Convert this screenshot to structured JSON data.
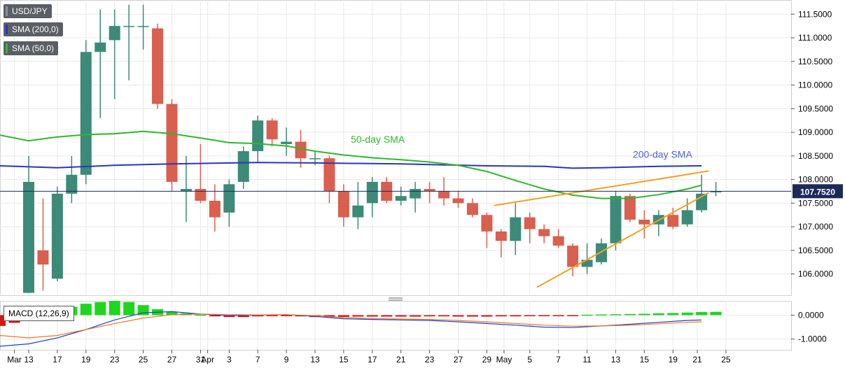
{
  "colors": {
    "bull": "#3d8a78",
    "bear": "#d95f4f",
    "sma200": "#2a36b8",
    "sma50": "#2db82d",
    "trend": "#f5a020",
    "price_line": "#1c2a5a",
    "macd_pos": "#1ed61e",
    "macd_neg": "#d41616",
    "macd_line": "#1a3fd0",
    "signal_line": "#f07820",
    "grid": "#e8e8e8",
    "axis_text": "#000000"
  },
  "legend": {
    "symbol": "USD/JPY",
    "sma200": "SMA (200,0)",
    "sma50": "SMA (50,0)",
    "macd": "MACD (12,26,9)"
  },
  "chart_data": {
    "type": "candlestick",
    "symbol": "USD/JPY",
    "ylim": [
      105.55,
      111.8
    ],
    "y_ticks": [
      "111.5000",
      "111.0000",
      "110.5000",
      "110.0000",
      "109.5000",
      "109.0000",
      "108.5000",
      "108.0000",
      "107.5000",
      "107.0000",
      "106.5000",
      "106.0000"
    ],
    "y_tick_values": [
      111.5,
      111.0,
      110.5,
      110.0,
      109.5,
      109.0,
      108.5,
      108.0,
      107.5,
      107.0,
      106.5,
      106.0
    ],
    "last_price": 107.752,
    "last_price_label": "107.7520",
    "x_tick_labels": [
      {
        "i": -1,
        "label": "Mar"
      },
      {
        "i": 0,
        "label": "13"
      },
      {
        "i": 2,
        "label": "17"
      },
      {
        "i": 4,
        "label": "19"
      },
      {
        "i": 6,
        "label": "23"
      },
      {
        "i": 8,
        "label": "25"
      },
      {
        "i": 10,
        "label": "27"
      },
      {
        "i": 12,
        "label": "31"
      },
      {
        "i": 12.5,
        "label": "Apr"
      },
      {
        "i": 14,
        "label": "3"
      },
      {
        "i": 16,
        "label": "7"
      },
      {
        "i": 18,
        "label": "9"
      },
      {
        "i": 20,
        "label": "13"
      },
      {
        "i": 22,
        "label": "15"
      },
      {
        "i": 24,
        "label": "17"
      },
      {
        "i": 26,
        "label": "21"
      },
      {
        "i": 28,
        "label": "23"
      },
      {
        "i": 30,
        "label": "27"
      },
      {
        "i": 32,
        "label": "29"
      },
      {
        "i": 33.2,
        "label": "May"
      },
      {
        "i": 35,
        "label": "5"
      },
      {
        "i": 37,
        "label": "7"
      },
      {
        "i": 39,
        "label": "11"
      },
      {
        "i": 41,
        "label": "13"
      },
      {
        "i": 43,
        "label": "15"
      },
      {
        "i": 45,
        "label": "19"
      },
      {
        "i": 46.7,
        "label": "21"
      },
      {
        "i": 48.7,
        "label": "25"
      }
    ],
    "candles": [
      {
        "date": "Mar 13",
        "o": 105.6,
        "h": 108.5,
        "l": 105.6,
        "c": 107.95
      },
      {
        "date": "Mar 16",
        "o": 106.5,
        "h": 107.6,
        "l": 105.65,
        "c": 106.2
      },
      {
        "date": "Mar 17",
        "o": 105.9,
        "h": 107.85,
        "l": 105.85,
        "c": 107.7
      },
      {
        "date": "Mar 18",
        "o": 107.7,
        "h": 108.5,
        "l": 107.5,
        "c": 108.1
      },
      {
        "date": "Mar 19",
        "o": 108.1,
        "h": 110.95,
        "l": 107.9,
        "c": 110.7
      },
      {
        "date": "Mar 20",
        "o": 110.7,
        "h": 111.6,
        "l": 109.3,
        "c": 110.9
      },
      {
        "date": "Mar 23",
        "o": 110.95,
        "h": 111.6,
        "l": 109.7,
        "c": 111.25
      },
      {
        "date": "Mar 24",
        "o": 111.25,
        "h": 111.7,
        "l": 110.1,
        "c": 111.25
      },
      {
        "date": "Mar 25",
        "o": 111.25,
        "h": 111.7,
        "l": 110.75,
        "c": 111.25
      },
      {
        "date": "Mar 26",
        "o": 111.2,
        "h": 111.3,
        "l": 109.5,
        "c": 109.6
      },
      {
        "date": "Mar 27",
        "o": 109.6,
        "h": 109.7,
        "l": 107.75,
        "c": 107.95
      },
      {
        "date": "Mar 30",
        "o": 107.75,
        "h": 108.5,
        "l": 107.1,
        "c": 107.8
      },
      {
        "date": "Mar 31",
        "o": 107.8,
        "h": 108.75,
        "l": 107.5,
        "c": 107.55
      },
      {
        "date": "Apr 1",
        "o": 107.55,
        "h": 107.9,
        "l": 106.9,
        "c": 107.2
      },
      {
        "date": "Apr 2",
        "o": 107.3,
        "h": 108.0,
        "l": 107.0,
        "c": 107.9
      },
      {
        "date": "Apr 3",
        "o": 107.95,
        "h": 108.7,
        "l": 107.8,
        "c": 108.6
      },
      {
        "date": "Apr 6",
        "o": 108.6,
        "h": 109.35,
        "l": 108.35,
        "c": 109.25
      },
      {
        "date": "Apr 7",
        "o": 109.25,
        "h": 109.3,
        "l": 108.7,
        "c": 108.85
      },
      {
        "date": "Apr 8",
        "o": 108.75,
        "h": 109.1,
        "l": 108.5,
        "c": 108.8
      },
      {
        "date": "Apr 9",
        "o": 108.8,
        "h": 109.05,
        "l": 108.25,
        "c": 108.45
      },
      {
        "date": "Apr 10",
        "o": 108.45,
        "h": 108.6,
        "l": 108.3,
        "c": 108.45
      },
      {
        "date": "Apr 13",
        "o": 108.45,
        "h": 108.5,
        "l": 107.5,
        "c": 107.75
      },
      {
        "date": "Apr 14",
        "o": 107.75,
        "h": 107.9,
        "l": 107.0,
        "c": 107.2
      },
      {
        "date": "Apr 15",
        "o": 107.2,
        "h": 107.95,
        "l": 106.95,
        "c": 107.45
      },
      {
        "date": "Apr 16",
        "o": 107.5,
        "h": 108.05,
        "l": 107.2,
        "c": 107.95
      },
      {
        "date": "Apr 17",
        "o": 107.95,
        "h": 108.05,
        "l": 107.5,
        "c": 107.55
      },
      {
        "date": "Apr 20",
        "o": 107.55,
        "h": 107.85,
        "l": 107.45,
        "c": 107.65
      },
      {
        "date": "Apr 21",
        "o": 107.6,
        "h": 107.95,
        "l": 107.3,
        "c": 107.8
      },
      {
        "date": "Apr 22",
        "o": 107.8,
        "h": 107.95,
        "l": 107.5,
        "c": 107.75
      },
      {
        "date": "Apr 23",
        "o": 107.75,
        "h": 108.05,
        "l": 107.45,
        "c": 107.6
      },
      {
        "date": "Apr 24",
        "o": 107.6,
        "h": 107.75,
        "l": 107.4,
        "c": 107.5
      },
      {
        "date": "Apr 27",
        "o": 107.5,
        "h": 107.6,
        "l": 107.2,
        "c": 107.25
      },
      {
        "date": "Apr 28",
        "o": 107.25,
        "h": 107.3,
        "l": 106.55,
        "c": 106.9
      },
      {
        "date": "Apr 29",
        "o": 106.9,
        "h": 106.95,
        "l": 106.35,
        "c": 106.7
      },
      {
        "date": "Apr 30",
        "o": 106.7,
        "h": 107.5,
        "l": 106.4,
        "c": 107.2
      },
      {
        "date": "May 1",
        "o": 107.2,
        "h": 107.3,
        "l": 106.65,
        "c": 106.95
      },
      {
        "date": "May 4",
        "o": 106.95,
        "h": 107.05,
        "l": 106.65,
        "c": 106.8
      },
      {
        "date": "May 5",
        "o": 106.8,
        "h": 106.95,
        "l": 106.55,
        "c": 106.6
      },
      {
        "date": "May 6",
        "o": 106.6,
        "h": 106.65,
        "l": 105.95,
        "c": 106.15
      },
      {
        "date": "May 7",
        "o": 106.15,
        "h": 106.65,
        "l": 106.0,
        "c": 106.3
      },
      {
        "date": "May 8",
        "o": 106.25,
        "h": 106.75,
        "l": 106.2,
        "c": 106.65
      },
      {
        "date": "May 11",
        "o": 106.65,
        "h": 107.75,
        "l": 106.5,
        "c": 107.65
      },
      {
        "date": "May 12",
        "o": 107.65,
        "h": 107.7,
        "l": 107.1,
        "c": 107.15
      },
      {
        "date": "May 13",
        "o": 107.15,
        "h": 107.35,
        "l": 106.75,
        "c": 107.05
      },
      {
        "date": "May 14",
        "o": 107.05,
        "h": 107.35,
        "l": 106.8,
        "c": 107.25
      },
      {
        "date": "May 15",
        "o": 107.25,
        "h": 107.4,
        "l": 106.95,
        "c": 107.0
      },
      {
        "date": "May 18",
        "o": 107.05,
        "h": 107.6,
        "l": 107.0,
        "c": 107.35
      },
      {
        "date": "May 19",
        "o": 107.35,
        "h": 108.1,
        "l": 107.3,
        "c": 107.7
      },
      {
        "date": "May 20",
        "o": 107.75,
        "h": 107.95,
        "l": 107.65,
        "c": 107.75
      }
    ],
    "sma50": [
      [
        -3,
        109.0
      ],
      [
        0,
        108.82
      ],
      [
        2,
        108.9
      ],
      [
        4,
        108.95
      ],
      [
        6,
        108.97
      ],
      [
        8,
        109.02
      ],
      [
        10,
        108.97
      ],
      [
        12,
        108.88
      ],
      [
        14,
        108.78
      ],
      [
        16,
        108.76
      ],
      [
        18,
        108.71
      ],
      [
        20,
        108.6
      ],
      [
        22,
        108.52
      ],
      [
        24,
        108.46
      ],
      [
        26,
        108.42
      ],
      [
        28,
        108.37
      ],
      [
        30,
        108.3
      ],
      [
        32,
        108.17
      ],
      [
        34,
        107.98
      ],
      [
        36,
        107.8
      ],
      [
        38,
        107.67
      ],
      [
        40,
        107.6
      ],
      [
        42,
        107.6
      ],
      [
        44,
        107.68
      ],
      [
        46,
        107.8
      ],
      [
        47,
        107.88
      ]
    ],
    "sma200": [
      [
        -3,
        108.3
      ],
      [
        2,
        108.25
      ],
      [
        6,
        108.3
      ],
      [
        10,
        108.33
      ],
      [
        16,
        108.36
      ],
      [
        20,
        108.35
      ],
      [
        26,
        108.33
      ],
      [
        32,
        108.29
      ],
      [
        36,
        108.28
      ],
      [
        38,
        108.24
      ],
      [
        40,
        108.25
      ],
      [
        44,
        108.28
      ],
      [
        47,
        108.29
      ]
    ],
    "trendlines": [
      {
        "from": [
          32.5,
          107.45
        ],
        "to": [
          47.5,
          108.18
        ]
      },
      {
        "from": [
          35.5,
          105.72
        ],
        "to": [
          47.5,
          107.72
        ]
      }
    ],
    "annotations": {
      "sma50_label": "50-day SMA",
      "sma200_label": "200-day SMA"
    },
    "macd": {
      "ylim": [
        -1.45,
        0.6
      ],
      "y_ticks": [
        "0.0000",
        "-1.0000"
      ],
      "y_tick_values": [
        0.0,
        -1.0
      ],
      "histogram": [
        -0.55,
        -0.45,
        -0.32,
        -0.22,
        -0.12,
        0.05,
        0.35,
        0.48,
        0.55,
        0.6,
        0.55,
        0.42,
        0.25,
        0.15,
        0.08,
        0.02,
        -0.05,
        -0.08,
        -0.08,
        -0.05,
        -0.04,
        -0.03,
        -0.05,
        -0.08,
        -0.08,
        -0.07,
        -0.06,
        -0.06,
        -0.06,
        -0.06,
        -0.06,
        -0.05,
        -0.05,
        -0.06,
        -0.06,
        -0.06,
        -0.05,
        -0.05,
        -0.04,
        -0.03,
        -0.03,
        -0.02,
        0.02,
        0.03,
        0.04,
        0.05,
        0.06,
        0.08,
        0.09,
        0.11,
        0.13,
        0.14
      ],
      "histogram_start": -3,
      "macd_line": [
        [
          -3,
          -1.35
        ],
        [
          0,
          -1.2
        ],
        [
          2,
          -0.95
        ],
        [
          4,
          -0.6
        ],
        [
          6,
          -0.2
        ],
        [
          8,
          0.1
        ],
        [
          10,
          0.15
        ],
        [
          12,
          0.05
        ],
        [
          14,
          -0.02
        ],
        [
          16,
          0.0
        ],
        [
          18,
          0.02
        ],
        [
          20,
          -0.05
        ],
        [
          22,
          -0.15
        ],
        [
          24,
          -0.18
        ],
        [
          26,
          -0.2
        ],
        [
          28,
          -0.22
        ],
        [
          30,
          -0.28
        ],
        [
          32,
          -0.35
        ],
        [
          34,
          -0.42
        ],
        [
          36,
          -0.5
        ],
        [
          38,
          -0.52
        ],
        [
          40,
          -0.45
        ],
        [
          42,
          -0.38
        ],
        [
          44,
          -0.3
        ],
        [
          46,
          -0.22
        ],
        [
          47,
          -0.2
        ]
      ],
      "signal_line": [
        [
          -3,
          -0.8
        ],
        [
          0,
          -0.95
        ],
        [
          2,
          -0.85
        ],
        [
          4,
          -0.6
        ],
        [
          6,
          -0.35
        ],
        [
          8,
          -0.12
        ],
        [
          10,
          0.02
        ],
        [
          12,
          0.05
        ],
        [
          14,
          0.02
        ],
        [
          16,
          0.01
        ],
        [
          18,
          0.02
        ],
        [
          20,
          -0.02
        ],
        [
          22,
          -0.1
        ],
        [
          24,
          -0.14
        ],
        [
          26,
          -0.16
        ],
        [
          28,
          -0.18
        ],
        [
          30,
          -0.22
        ],
        [
          32,
          -0.28
        ],
        [
          34,
          -0.35
        ],
        [
          36,
          -0.42
        ],
        [
          38,
          -0.46
        ],
        [
          40,
          -0.45
        ],
        [
          42,
          -0.42
        ],
        [
          44,
          -0.36
        ],
        [
          46,
          -0.3
        ],
        [
          47,
          -0.28
        ]
      ]
    }
  }
}
